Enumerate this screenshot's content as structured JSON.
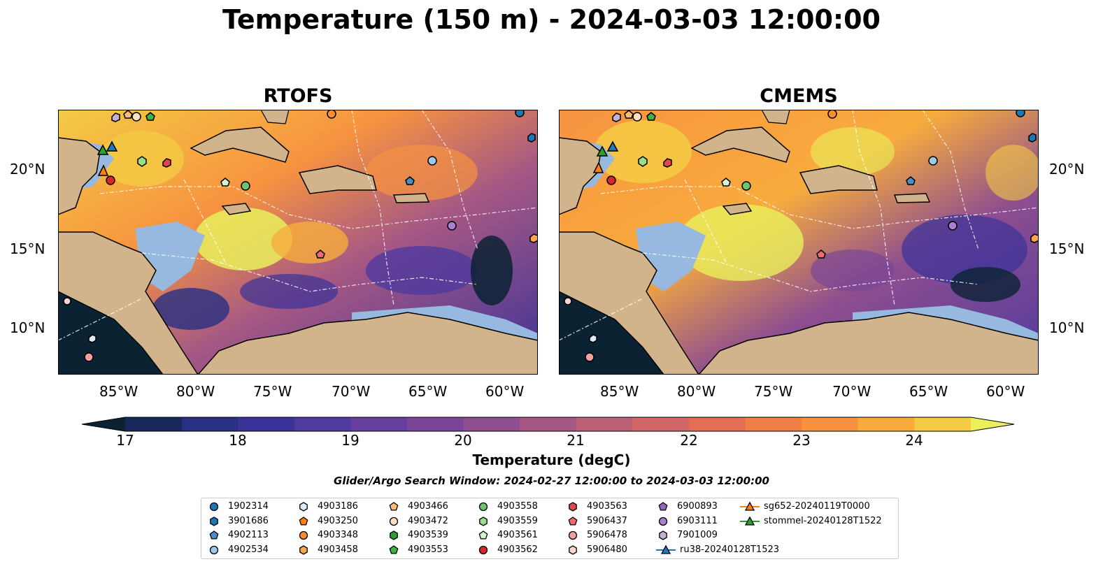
{
  "title": "Temperature (150 m) - 2024-03-03 12:00:00",
  "panels": [
    {
      "title": "RTOFS"
    },
    {
      "title": "CMEMS"
    }
  ],
  "axes": {
    "lon_ticks": [
      "85°W",
      "80°W",
      "75°W",
      "70°W",
      "65°W",
      "60°W"
    ],
    "lat_ticks": [
      "20°N",
      "15°N",
      "10°N"
    ]
  },
  "colorbar": {
    "label": "Temperature (degC)",
    "ticks": [
      "17",
      "18",
      "19",
      "20",
      "21",
      "22",
      "23",
      "24"
    ],
    "colors": [
      "#0b2233",
      "#16295a",
      "#273082",
      "#3b3298",
      "#4f3a9e",
      "#663e9e",
      "#7b4697",
      "#8e4e8f",
      "#a65884",
      "#bc6077",
      "#d16766",
      "#e26f55",
      "#f07f45",
      "#f79340",
      "#f8ac3d",
      "#f4cb44",
      "#e9f05c"
    ]
  },
  "search_window": "Glider/Argo Search Window: 2024-02-27 12:00:00 to 2024-03-03 12:00:00",
  "colors": {
    "land": "#d1b48c",
    "shelf": "#97b9df",
    "deep": "#0b2233"
  },
  "legend": [
    {
      "label": "1902314",
      "marker": "circle",
      "color": "#1f77b4"
    },
    {
      "label": "3901686",
      "marker": "hexagon",
      "color": "#1f77b4"
    },
    {
      "label": "4902113",
      "marker": "pentagon",
      "color": "#4a8ec9"
    },
    {
      "label": "4902534",
      "marker": "circle",
      "color": "#9ecae9"
    },
    {
      "label": "4903186",
      "marker": "hexagon",
      "color": "#dceaf7"
    },
    {
      "label": "4903250",
      "marker": "pentagon",
      "color": "#ff7f0e"
    },
    {
      "label": "4903348",
      "marker": "circle",
      "color": "#ff8c2a"
    },
    {
      "label": "4903458",
      "marker": "hexagon",
      "color": "#ffa54f"
    },
    {
      "label": "4903466",
      "marker": "pentagon",
      "color": "#ffbb78"
    },
    {
      "label": "4903472",
      "marker": "circle",
      "color": "#ffe0c2"
    },
    {
      "label": "4903539",
      "marker": "hexagon",
      "color": "#2ca02c"
    },
    {
      "label": "4903553",
      "marker": "pentagon",
      "color": "#3fb33f"
    },
    {
      "label": "4903558",
      "marker": "circle",
      "color": "#6cc46c"
    },
    {
      "label": "4903559",
      "marker": "hexagon",
      "color": "#98df8a"
    },
    {
      "label": "4903561",
      "marker": "pentagon",
      "color": "#d5f5cf"
    },
    {
      "label": "4903562",
      "marker": "circle",
      "color": "#d62728"
    },
    {
      "label": "4903563",
      "marker": "hexagon",
      "color": "#e0474a"
    },
    {
      "label": "5906437",
      "marker": "pentagon",
      "color": "#ea6b70"
    },
    {
      "label": "5906478",
      "marker": "circle",
      "color": "#f4a0a0"
    },
    {
      "label": "5906480",
      "marker": "hexagon",
      "color": "#fcd5d3"
    },
    {
      "label": "6900893",
      "marker": "pentagon",
      "color": "#9467bd"
    },
    {
      "label": "6903111",
      "marker": "circle",
      "color": "#a980cf"
    },
    {
      "label": "7901009",
      "marker": "hexagon",
      "color": "#c5b0d5"
    },
    {
      "label": "ru38-20240128T1523",
      "marker": "triangle",
      "color": "#1f77b4"
    },
    {
      "label": "sg652-20240119T0000",
      "marker": "triangle",
      "color": "#ff7f0e"
    },
    {
      "label": "stommel-20240128T1522",
      "marker": "triangle",
      "color": "#2ca02c"
    }
  ]
}
